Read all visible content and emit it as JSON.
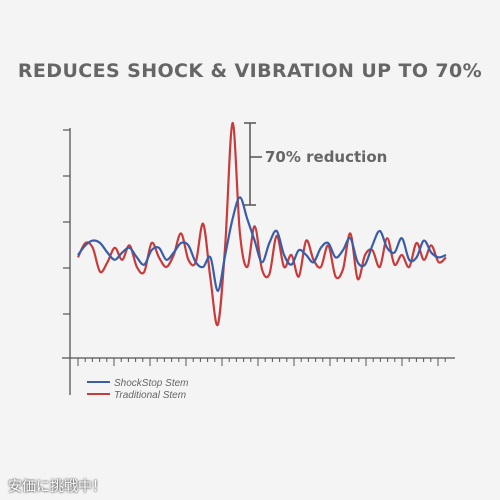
{
  "headline": "REDUCES SHOCK & VIBRATION UP TO 70%",
  "footer": "安価に挑戦中！",
  "colors": {
    "shockstop": "#3a5da8",
    "traditional": "#c93a3a",
    "axis": "#555555",
    "text": "#666666"
  },
  "chart_data": {
    "type": "line",
    "title": "REDUCES SHOCK & VIBRATION UP TO 70%",
    "xlabel": "",
    "ylabel": "",
    "grid": false,
    "legend": "bottom-left",
    "annotation": "70% reduction",
    "series": [
      {
        "name": "ShockStop Stem",
        "color": "#3a5da8",
        "points": [
          [
            0,
            0
          ],
          [
            2,
            8
          ],
          [
            4,
            12
          ],
          [
            6,
            10
          ],
          [
            8,
            2
          ],
          [
            10,
            -4
          ],
          [
            12,
            2
          ],
          [
            14,
            6
          ],
          [
            16,
            -2
          ],
          [
            18,
            -8
          ],
          [
            20,
            4
          ],
          [
            22,
            6
          ],
          [
            24,
            -4
          ],
          [
            26,
            2
          ],
          [
            28,
            10
          ],
          [
            30,
            8
          ],
          [
            32,
            -6
          ],
          [
            34,
            -10
          ],
          [
            36,
            -2
          ],
          [
            38,
            -30
          ],
          [
            40,
            0
          ],
          [
            42,
            30
          ],
          [
            44,
            48
          ],
          [
            46,
            30
          ],
          [
            48,
            12
          ],
          [
            50,
            -6
          ],
          [
            52,
            10
          ],
          [
            54,
            20
          ],
          [
            56,
            0
          ],
          [
            58,
            -8
          ],
          [
            60,
            4
          ],
          [
            62,
            0
          ],
          [
            64,
            -6
          ],
          [
            66,
            6
          ],
          [
            68,
            10
          ],
          [
            70,
            -2
          ],
          [
            72,
            4
          ],
          [
            74,
            14
          ],
          [
            76,
            -6
          ],
          [
            78,
            -8
          ],
          [
            80,
            8
          ],
          [
            82,
            20
          ],
          [
            84,
            6
          ],
          [
            86,
            2
          ],
          [
            88,
            14
          ],
          [
            90,
            -4
          ],
          [
            92,
            -2
          ],
          [
            94,
            12
          ],
          [
            96,
            2
          ],
          [
            98,
            -2
          ],
          [
            100,
            0
          ]
        ]
      },
      {
        "name": "Traditional Stem",
        "color": "#c93a3a",
        "points": [
          [
            0,
            -2
          ],
          [
            2,
            10
          ],
          [
            4,
            6
          ],
          [
            6,
            -14
          ],
          [
            8,
            -6
          ],
          [
            10,
            6
          ],
          [
            12,
            -4
          ],
          [
            14,
            8
          ],
          [
            16,
            -10
          ],
          [
            18,
            -14
          ],
          [
            20,
            10
          ],
          [
            22,
            -2
          ],
          [
            24,
            -10
          ],
          [
            26,
            0
          ],
          [
            28,
            18
          ],
          [
            30,
            -4
          ],
          [
            32,
            -6
          ],
          [
            34,
            26
          ],
          [
            36,
            -20
          ],
          [
            38,
            -58
          ],
          [
            40,
            8
          ],
          [
            42,
            110
          ],
          [
            44,
            18
          ],
          [
            46,
            -10
          ],
          [
            48,
            24
          ],
          [
            50,
            -12
          ],
          [
            52,
            -16
          ],
          [
            54,
            16
          ],
          [
            56,
            -10
          ],
          [
            58,
            0
          ],
          [
            60,
            -18
          ],
          [
            62,
            12
          ],
          [
            64,
            -4
          ],
          [
            66,
            -10
          ],
          [
            68,
            8
          ],
          [
            70,
            -18
          ],
          [
            72,
            -12
          ],
          [
            74,
            18
          ],
          [
            76,
            -20
          ],
          [
            78,
            0
          ],
          [
            80,
            4
          ],
          [
            82,
            -10
          ],
          [
            84,
            14
          ],
          [
            86,
            -8
          ],
          [
            88,
            0
          ],
          [
            90,
            -10
          ],
          [
            92,
            10
          ],
          [
            94,
            -4
          ],
          [
            96,
            8
          ],
          [
            98,
            -6
          ],
          [
            100,
            -2
          ]
        ]
      }
    ]
  }
}
